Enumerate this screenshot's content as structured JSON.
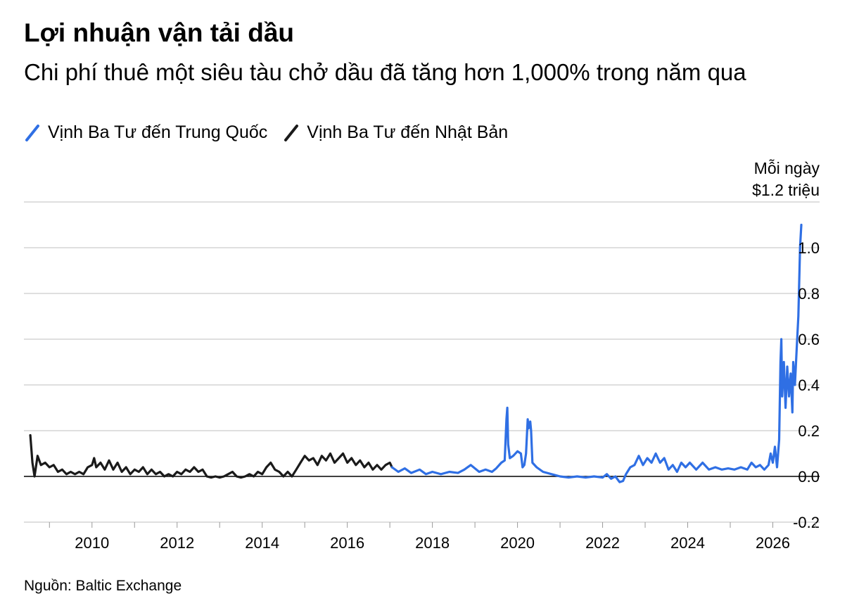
{
  "title": "Lợi nhuận vận tải dầu",
  "subtitle": "Chi phí thuê một siêu tàu chở dầu đã tăng hơn 1,000% trong năm qua",
  "source": "Nguồn: Baltic Exchange",
  "colors": {
    "china": "#2f6fe4",
    "japan": "#1a1a1a",
    "grid": "#cccccc",
    "zero": "#000000"
  },
  "chart_data": {
    "type": "line",
    "units_line1": "Mỗi ngày",
    "units_line2": "$1.2 triệu",
    "y_ticks": [
      1.2,
      1.0,
      0.8,
      0.6,
      0.4,
      0.2,
      0.0,
      -0.2
    ],
    "y_tick_labels": [
      "",
      "1.0",
      "0.8",
      "0.6",
      "0.4",
      "0.2",
      "0.0",
      "-0.2"
    ],
    "ylim": [
      -0.2,
      1.2
    ],
    "xlim": [
      2008.4,
      2027.1
    ],
    "x_ticks": [
      2010,
      2012,
      2014,
      2016,
      2018,
      2020,
      2022,
      2024,
      2026
    ],
    "x_tick_labels": [
      "2010",
      "2012",
      "2014",
      "2016",
      "2018",
      "2020",
      "2022",
      "2024",
      "2026"
    ],
    "series": [
      {
        "name": "Vịnh Ba Tư đến Trung Quốc",
        "color": "#2f6fe4",
        "points": [
          [
            2017.05,
            0.04
          ],
          [
            2017.2,
            0.02
          ],
          [
            2017.35,
            0.035
          ],
          [
            2017.5,
            0.015
          ],
          [
            2017.7,
            0.03
          ],
          [
            2017.85,
            0.01
          ],
          [
            2018.0,
            0.02
          ],
          [
            2018.2,
            0.01
          ],
          [
            2018.4,
            0.02
          ],
          [
            2018.6,
            0.015
          ],
          [
            2018.75,
            0.03
          ],
          [
            2018.9,
            0.05
          ],
          [
            2019.0,
            0.035
          ],
          [
            2019.1,
            0.02
          ],
          [
            2019.25,
            0.03
          ],
          [
            2019.4,
            0.02
          ],
          [
            2019.5,
            0.035
          ],
          [
            2019.62,
            0.06
          ],
          [
            2019.7,
            0.07
          ],
          [
            2019.74,
            0.25
          ],
          [
            2019.76,
            0.3
          ],
          [
            2019.78,
            0.14
          ],
          [
            2019.82,
            0.08
          ],
          [
            2019.9,
            0.09
          ],
          [
            2020.0,
            0.11
          ],
          [
            2020.08,
            0.1
          ],
          [
            2020.12,
            0.04
          ],
          [
            2020.16,
            0.05
          ],
          [
            2020.2,
            0.1
          ],
          [
            2020.24,
            0.25
          ],
          [
            2020.26,
            0.21
          ],
          [
            2020.3,
            0.24
          ],
          [
            2020.32,
            0.2
          ],
          [
            2020.35,
            0.06
          ],
          [
            2020.45,
            0.04
          ],
          [
            2020.6,
            0.02
          ],
          [
            2020.8,
            0.01
          ],
          [
            2021.0,
            0.0
          ],
          [
            2021.2,
            -0.005
          ],
          [
            2021.4,
            0.0
          ],
          [
            2021.6,
            -0.005
          ],
          [
            2021.8,
            0.0
          ],
          [
            2022.0,
            -0.005
          ],
          [
            2022.1,
            0.01
          ],
          [
            2022.2,
            -0.01
          ],
          [
            2022.3,
            0.0
          ],
          [
            2022.4,
            -0.025
          ],
          [
            2022.48,
            -0.02
          ],
          [
            2022.55,
            0.01
          ],
          [
            2022.65,
            0.04
          ],
          [
            2022.75,
            0.05
          ],
          [
            2022.85,
            0.09
          ],
          [
            2022.95,
            0.05
          ],
          [
            2023.05,
            0.08
          ],
          [
            2023.15,
            0.06
          ],
          [
            2023.25,
            0.1
          ],
          [
            2023.35,
            0.06
          ],
          [
            2023.45,
            0.08
          ],
          [
            2023.55,
            0.03
          ],
          [
            2023.65,
            0.05
          ],
          [
            2023.75,
            0.02
          ],
          [
            2023.85,
            0.06
          ],
          [
            2023.95,
            0.04
          ],
          [
            2024.05,
            0.06
          ],
          [
            2024.2,
            0.03
          ],
          [
            2024.35,
            0.06
          ],
          [
            2024.5,
            0.03
          ],
          [
            2024.65,
            0.04
          ],
          [
            2024.8,
            0.03
          ],
          [
            2024.95,
            0.035
          ],
          [
            2025.1,
            0.03
          ],
          [
            2025.25,
            0.04
          ],
          [
            2025.4,
            0.03
          ],
          [
            2025.5,
            0.06
          ],
          [
            2025.6,
            0.04
          ],
          [
            2025.7,
            0.05
          ],
          [
            2025.8,
            0.03
          ],
          [
            2025.9,
            0.05
          ],
          [
            2025.95,
            0.1
          ],
          [
            2026.0,
            0.06
          ],
          [
            2026.05,
            0.13
          ],
          [
            2026.1,
            0.04
          ],
          [
            2026.15,
            0.16
          ],
          [
            2026.18,
            0.5
          ],
          [
            2026.2,
            0.6
          ],
          [
            2026.22,
            0.35
          ],
          [
            2026.26,
            0.5
          ],
          [
            2026.3,
            0.3
          ],
          [
            2026.34,
            0.48
          ],
          [
            2026.38,
            0.35
          ],
          [
            2026.42,
            0.45
          ],
          [
            2026.46,
            0.28
          ],
          [
            2026.48,
            0.5
          ],
          [
            2026.52,
            0.4
          ],
          [
            2026.56,
            0.55
          ],
          [
            2026.6,
            0.7
          ],
          [
            2026.64,
            1.0
          ],
          [
            2026.67,
            1.1
          ]
        ]
      },
      {
        "name": "Vịnh Ba Tư đến Nhật Bản",
        "color": "#1a1a1a",
        "points": [
          [
            2008.55,
            0.18
          ],
          [
            2008.6,
            0.06
          ],
          [
            2008.65,
            0.0
          ],
          [
            2008.72,
            0.09
          ],
          [
            2008.8,
            0.05
          ],
          [
            2008.9,
            0.06
          ],
          [
            2009.0,
            0.04
          ],
          [
            2009.1,
            0.05
          ],
          [
            2009.2,
            0.02
          ],
          [
            2009.3,
            0.03
          ],
          [
            2009.4,
            0.01
          ],
          [
            2009.5,
            0.02
          ],
          [
            2009.6,
            0.01
          ],
          [
            2009.7,
            0.02
          ],
          [
            2009.8,
            0.01
          ],
          [
            2009.9,
            0.04
          ],
          [
            2010.0,
            0.05
          ],
          [
            2010.05,
            0.08
          ],
          [
            2010.1,
            0.04
          ],
          [
            2010.2,
            0.06
          ],
          [
            2010.3,
            0.03
          ],
          [
            2010.4,
            0.07
          ],
          [
            2010.5,
            0.03
          ],
          [
            2010.6,
            0.06
          ],
          [
            2010.7,
            0.02
          ],
          [
            2010.8,
            0.04
          ],
          [
            2010.9,
            0.01
          ],
          [
            2011.0,
            0.03
          ],
          [
            2011.1,
            0.02
          ],
          [
            2011.2,
            0.04
          ],
          [
            2011.3,
            0.01
          ],
          [
            2011.4,
            0.03
          ],
          [
            2011.5,
            0.01
          ],
          [
            2011.6,
            0.02
          ],
          [
            2011.7,
            0.0
          ],
          [
            2011.8,
            0.01
          ],
          [
            2011.9,
            0.0
          ],
          [
            2012.0,
            0.02
          ],
          [
            2012.1,
            0.01
          ],
          [
            2012.2,
            0.03
          ],
          [
            2012.3,
            0.02
          ],
          [
            2012.4,
            0.04
          ],
          [
            2012.5,
            0.02
          ],
          [
            2012.6,
            0.03
          ],
          [
            2012.7,
            0.0
          ],
          [
            2012.8,
            -0.005
          ],
          [
            2012.9,
            0.0
          ],
          [
            2013.0,
            -0.005
          ],
          [
            2013.1,
            0.0
          ],
          [
            2013.2,
            0.01
          ],
          [
            2013.3,
            0.02
          ],
          [
            2013.4,
            0.0
          ],
          [
            2013.5,
            -0.005
          ],
          [
            2013.6,
            0.0
          ],
          [
            2013.7,
            0.01
          ],
          [
            2013.8,
            0.0
          ],
          [
            2013.9,
            0.02
          ],
          [
            2014.0,
            0.01
          ],
          [
            2014.1,
            0.04
          ],
          [
            2014.2,
            0.06
          ],
          [
            2014.3,
            0.03
          ],
          [
            2014.4,
            0.02
          ],
          [
            2014.5,
            0.0
          ],
          [
            2014.6,
            0.02
          ],
          [
            2014.7,
            0.0
          ],
          [
            2014.8,
            0.03
          ],
          [
            2014.9,
            0.06
          ],
          [
            2015.0,
            0.09
          ],
          [
            2015.1,
            0.07
          ],
          [
            2015.2,
            0.08
          ],
          [
            2015.3,
            0.05
          ],
          [
            2015.4,
            0.09
          ],
          [
            2015.5,
            0.07
          ],
          [
            2015.6,
            0.1
          ],
          [
            2015.7,
            0.06
          ],
          [
            2015.8,
            0.08
          ],
          [
            2015.9,
            0.1
          ],
          [
            2016.0,
            0.06
          ],
          [
            2016.1,
            0.08
          ],
          [
            2016.2,
            0.05
          ],
          [
            2016.3,
            0.07
          ],
          [
            2016.4,
            0.04
          ],
          [
            2016.5,
            0.06
          ],
          [
            2016.6,
            0.03
          ],
          [
            2016.7,
            0.05
          ],
          [
            2016.8,
            0.03
          ],
          [
            2016.9,
            0.05
          ],
          [
            2017.0,
            0.06
          ],
          [
            2017.05,
            0.04
          ]
        ]
      }
    ]
  }
}
